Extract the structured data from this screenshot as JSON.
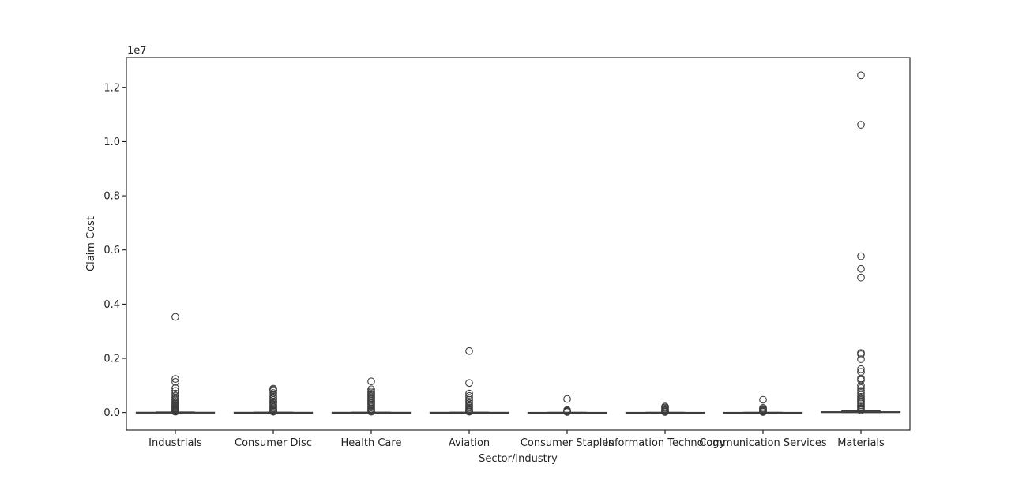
{
  "chart_data": {
    "type": "box",
    "xlabel": "Sector/Industry",
    "ylabel": "Claim Cost",
    "y_offset_label": "1e7",
    "y_scale_factor": 10000000,
    "ylim": [
      -650000,
      13100000
    ],
    "yticks": [
      0,
      2000000,
      4000000,
      6000000,
      8000000,
      10000000,
      12000000
    ],
    "ytick_labels": [
      "0.0",
      "0.2",
      "0.4",
      "0.6",
      "0.8",
      "1.0",
      "1.2"
    ],
    "categories": [
      "Industrials",
      "Consumer Disc",
      "Health Care",
      "Aviation",
      "Consumer Staples",
      "Information Technology",
      "Communication Services",
      "Materials"
    ],
    "grid": false,
    "series": [
      {
        "category": "Industrials",
        "box": {
          "whisker_low": 0,
          "q1": 0,
          "median": 0,
          "q3": 10000,
          "whisker_high": 20000
        },
        "outliers": [
          3530000,
          1240000,
          1130000,
          900000,
          800000,
          700000,
          620000,
          560000,
          500000,
          450000,
          400000,
          360000,
          320000,
          280000,
          250000,
          220000,
          190000,
          160000,
          130000,
          100000,
          80000,
          60000,
          40000,
          30000
        ]
      },
      {
        "category": "Consumer Disc",
        "box": {
          "whisker_low": 0,
          "q1": 0,
          "median": 0,
          "q3": 8000,
          "whisker_high": 15000
        },
        "outliers": [
          880000,
          840000,
          800000,
          720000,
          650000,
          580000,
          520000,
          460000,
          400000,
          350000,
          300000,
          250000,
          200000,
          160000,
          120000,
          80000,
          50000,
          30000
        ]
      },
      {
        "category": "Health Care",
        "box": {
          "whisker_low": 0,
          "q1": 0,
          "median": 0,
          "q3": 8000,
          "whisker_high": 15000
        },
        "outliers": [
          1150000,
          860000,
          790000,
          740000,
          690000,
          640000,
          590000,
          540000,
          490000,
          440000,
          390000,
          340000,
          290000,
          240000,
          190000,
          140000,
          100000,
          60000,
          30000
        ]
      },
      {
        "category": "Aviation",
        "box": {
          "whisker_low": 0,
          "q1": 0,
          "median": 0,
          "q3": 8000,
          "whisker_high": 15000
        },
        "outliers": [
          2270000,
          1090000,
          700000,
          610000,
          540000,
          470000,
          400000,
          340000,
          280000,
          230000,
          180000,
          130000,
          90000,
          50000,
          30000
        ]
      },
      {
        "category": "Consumer Staples",
        "box": {
          "whisker_low": 0,
          "q1": 0,
          "median": 0,
          "q3": 5000,
          "whisker_high": 10000
        },
        "outliers": [
          500000,
          90000,
          60000,
          40000,
          20000
        ]
      },
      {
        "category": "Information Technology",
        "box": {
          "whisker_low": 0,
          "q1": 0,
          "median": 0,
          "q3": 5000,
          "whisker_high": 10000
        },
        "outliers": [
          220000,
          180000,
          140000,
          100000,
          70000,
          40000,
          20000
        ]
      },
      {
        "category": "Communication Services",
        "box": {
          "whisker_low": 0,
          "q1": 0,
          "median": 0,
          "q3": 5000,
          "whisker_high": 10000
        },
        "outliers": [
          470000,
          170000,
          130000,
          100000,
          70000,
          40000,
          20000
        ]
      },
      {
        "category": "Materials",
        "box": {
          "whisker_low": 0,
          "q1": 0,
          "median": 10000,
          "q3": 30000,
          "whisker_high": 60000
        },
        "outliers": [
          12450000,
          10620000,
          5770000,
          5300000,
          4980000,
          2200000,
          2150000,
          1970000,
          1600000,
          1500000,
          1260000,
          1200000,
          1000000,
          900000,
          800000,
          720000,
          650000,
          580000,
          510000,
          450000,
          390000,
          330000,
          270000,
          220000,
          170000,
          120000,
          80000
        ]
      }
    ]
  }
}
